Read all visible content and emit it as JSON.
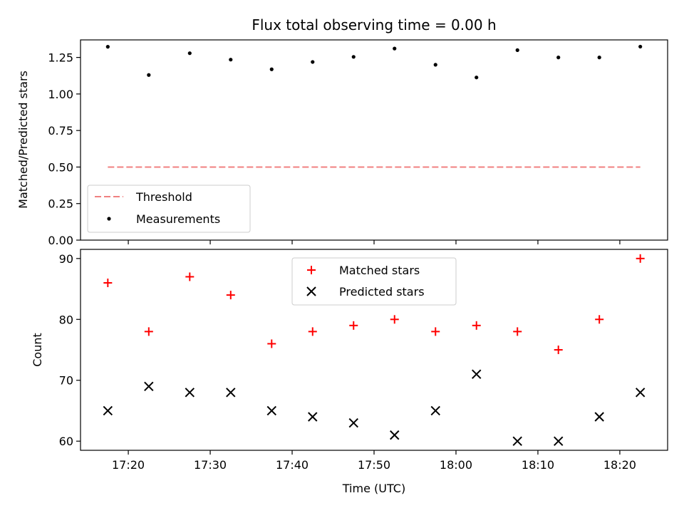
{
  "figure": {
    "title": "Flux total observing time = 0.00 h"
  },
  "chart_data": [
    {
      "type": "scatter",
      "title": "Flux total observing time = 0.00 h",
      "xlabel": "",
      "ylabel": "Matched/Predicted stars",
      "ylim": [
        0,
        1.37
      ],
      "yticks": [
        0.0,
        0.25,
        0.5,
        0.75,
        1.0,
        1.25
      ],
      "ytick_labels": [
        "0.00",
        "0.25",
        "0.50",
        "0.75",
        "1.00",
        "1.25"
      ],
      "grid": false,
      "legend": "lower-left",
      "series": [
        {
          "name": "Threshold",
          "type": "line",
          "style": "dashed",
          "color": "#f08080",
          "x": [
            "17:17:30",
            "18:22:30"
          ],
          "y": [
            0.5,
            0.5
          ]
        },
        {
          "name": "Measurements",
          "type": "scatter",
          "marker": "dot",
          "color": "#000000",
          "x": [
            "17:17:30",
            "17:22:30",
            "17:27:30",
            "17:32:30",
            "17:37:30",
            "17:42:30",
            "17:47:30",
            "17:52:30",
            "17:57:30",
            "18:02:30",
            "18:07:30",
            "18:12:30",
            "18:17:30",
            "18:22:30"
          ],
          "y": [
            1.323,
            1.13,
            1.279,
            1.235,
            1.169,
            1.219,
            1.254,
            1.311,
            1.2,
            1.113,
            1.3,
            1.25,
            1.25,
            1.324
          ]
        }
      ]
    },
    {
      "type": "scatter",
      "title": "",
      "xlabel": "Time (UTC)",
      "ylabel": "Count",
      "ylim": [
        58.5,
        91.5
      ],
      "yticks": [
        60,
        70,
        80,
        90
      ],
      "ytick_labels": [
        "60",
        "70",
        "80",
        "90"
      ],
      "xlim": [
        "17:14:10",
        "18:25:50"
      ],
      "xticks": [
        "17:20",
        "17:30",
        "17:40",
        "17:50",
        "18:00",
        "18:10",
        "18:20"
      ],
      "grid": false,
      "legend": "top-center",
      "series": [
        {
          "name": "Matched stars",
          "marker": "plus",
          "color": "#ff0000",
          "x": [
            "17:17:30",
            "17:22:30",
            "17:27:30",
            "17:32:30",
            "17:37:30",
            "17:42:30",
            "17:47:30",
            "17:52:30",
            "17:57:30",
            "18:02:30",
            "18:07:30",
            "18:12:30",
            "18:17:30",
            "18:22:30"
          ],
          "y": [
            86,
            78,
            87,
            84,
            76,
            78,
            79,
            80,
            78,
            79,
            78,
            75,
            80,
            90
          ]
        },
        {
          "name": "Predicted stars",
          "marker": "x",
          "color": "#000000",
          "x": [
            "17:17:30",
            "17:22:30",
            "17:27:30",
            "17:32:30",
            "17:37:30",
            "17:42:30",
            "17:47:30",
            "17:52:30",
            "17:57:30",
            "18:02:30",
            "18:07:30",
            "18:12:30",
            "18:17:30",
            "18:22:30"
          ],
          "y": [
            65,
            69,
            68,
            68,
            65,
            64,
            63,
            61,
            65,
            71,
            60,
            60,
            64,
            68
          ]
        }
      ]
    }
  ]
}
